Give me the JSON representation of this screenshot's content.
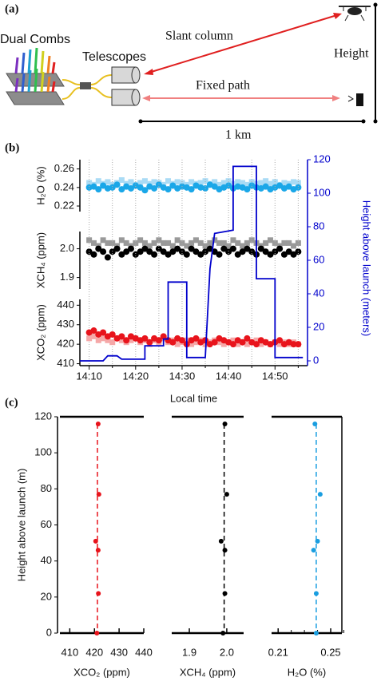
{
  "panel_labels": [
    "(a)",
    "(b)",
    "(c)"
  ],
  "diagram": {
    "source": "Dual Combs",
    "telescopes": "Telescopes",
    "slant": "Slant column",
    "fixed": "Fixed path",
    "height": "Height",
    "distance": "1 km"
  },
  "chart_data": [
    {
      "type": "scatter",
      "ylabel": "H₂O (%)",
      "x": [
        "14:10",
        "14:11",
        "14:12",
        "14:13",
        "14:14",
        "14:15",
        "14:16",
        "14:17",
        "14:18",
        "14:19",
        "14:20",
        "14:21",
        "14:22",
        "14:23",
        "14:24",
        "14:25",
        "14:26",
        "14:27",
        "14:28",
        "14:29",
        "14:30",
        "14:31",
        "14:32",
        "14:33",
        "14:34",
        "14:35",
        "14:36",
        "14:37",
        "14:38",
        "14:39",
        "14:40",
        "14:41",
        "14:42",
        "14:43",
        "14:44",
        "14:45",
        "14:46",
        "14:47",
        "14:48",
        "14:49",
        "14:50",
        "14:51",
        "14:52",
        "14:53",
        "14:54",
        "14:55"
      ],
      "xlim": [
        "14:08",
        "14:57"
      ],
      "ylim": [
        0.214,
        0.27
      ],
      "yticks": [
        0.22,
        0.24,
        0.26
      ],
      "series": [
        {
          "color": "#a9dbf5",
          "marker": "square",
          "values": [
            0.245,
            0.243,
            0.247,
            0.244,
            0.246,
            0.243,
            0.245,
            0.248,
            0.244,
            0.246,
            0.243,
            0.245,
            0.247,
            0.244,
            0.246,
            0.245,
            0.243,
            0.247,
            0.244,
            0.246,
            0.245,
            0.243,
            0.246,
            0.244,
            0.245,
            0.247,
            0.244,
            0.246,
            0.243,
            0.245,
            0.247,
            0.244,
            0.246,
            0.245,
            0.243,
            0.246,
            0.244,
            0.245,
            0.247,
            0.244,
            0.246,
            0.243,
            0.245,
            0.244,
            0.246,
            0.245
          ]
        },
        {
          "color": "#1aa7e8",
          "marker": "circle",
          "values": [
            0.24,
            0.241,
            0.238,
            0.242,
            0.239,
            0.24,
            0.243,
            0.238,
            0.241,
            0.239,
            0.242,
            0.24,
            0.237,
            0.241,
            0.239,
            0.243,
            0.24,
            0.238,
            0.242,
            0.239,
            0.241,
            0.24,
            0.238,
            0.242,
            0.24,
            0.239,
            0.243,
            0.241,
            0.238,
            0.24,
            0.242,
            0.239,
            0.241,
            0.24,
            0.238,
            0.242,
            0.24,
            0.239,
            0.241,
            0.238,
            0.24,
            0.242,
            0.239,
            0.241,
            0.238,
            0.24
          ]
        }
      ]
    },
    {
      "type": "scatter",
      "ylabel": "XCH₄ (ppm)",
      "x": [
        "14:10",
        "14:11",
        "14:12",
        "14:13",
        "14:14",
        "14:15",
        "14:16",
        "14:17",
        "14:18",
        "14:19",
        "14:20",
        "14:21",
        "14:22",
        "14:23",
        "14:24",
        "14:25",
        "14:26",
        "14:27",
        "14:28",
        "14:29",
        "14:30",
        "14:31",
        "14:32",
        "14:33",
        "14:34",
        "14:35",
        "14:36",
        "14:37",
        "14:38",
        "14:39",
        "14:40",
        "14:41",
        "14:42",
        "14:43",
        "14:44",
        "14:45",
        "14:46",
        "14:47",
        "14:48",
        "14:49",
        "14:50",
        "14:51",
        "14:52",
        "14:53",
        "14:54",
        "14:55"
      ],
      "xlim": [
        "14:08",
        "14:57"
      ],
      "ylim": [
        1.86,
        2.06
      ],
      "yticks": [
        1.9,
        {
          "value": 2,
          "label": "2.0"
        }
      ],
      "series": [
        {
          "color": "#999999",
          "marker": "square",
          "values": [
            2.03,
            2.02,
            2.01,
            2.03,
            2.02,
            2.02,
            2.01,
            2.03,
            2.02,
            2.01,
            2.02,
            2.03,
            2.02,
            2.01,
            2.02,
            2.03,
            2.02,
            2.02,
            2.01,
            2.03,
            2.02,
            2.01,
            2.02,
            2.03,
            2.02,
            2.01,
            2.02,
            2.03,
            2.02,
            2.02,
            2.01,
            2.03,
            2.02,
            2.01,
            2.02,
            2.03,
            2.02,
            2.01,
            2.02,
            2.03,
            2.02,
            2.01,
            2.02,
            2.02,
            2.01,
            2.02
          ]
        },
        {
          "color": "#000000",
          "marker": "circle",
          "values": [
            1.99,
            1.98,
            2.0,
            1.99,
            1.97,
            1.99,
            2.0,
            1.98,
            1.99,
            2.0,
            1.98,
            1.99,
            2.0,
            1.99,
            1.98,
            2.0,
            1.99,
            1.98,
            1.99,
            2.0,
            1.99,
            1.98,
            2.0,
            1.99,
            1.98,
            1.99,
            2.0,
            1.99,
            1.98,
            2.0,
            1.99,
            2.0,
            1.98,
            1.99,
            2.0,
            1.99,
            1.98,
            2.0,
            1.99,
            1.98,
            1.99,
            2.0,
            1.98,
            1.99,
            1.98,
            1.99
          ]
        }
      ]
    },
    {
      "type": "scatter",
      "ylabel": "XCO₂ (ppm)",
      "xlabel": "Local time",
      "x": [
        "14:10",
        "14:11",
        "14:12",
        "14:13",
        "14:14",
        "14:15",
        "14:16",
        "14:17",
        "14:18",
        "14:19",
        "14:20",
        "14:21",
        "14:22",
        "14:23",
        "14:24",
        "14:25",
        "14:26",
        "14:27",
        "14:28",
        "14:29",
        "14:30",
        "14:31",
        "14:32",
        "14:33",
        "14:34",
        "14:35",
        "14:36",
        "14:37",
        "14:38",
        "14:39",
        "14:40",
        "14:41",
        "14:42",
        "14:43",
        "14:44",
        "14:45",
        "14:46",
        "14:47",
        "14:48",
        "14:49",
        "14:50",
        "14:51",
        "14:52",
        "14:53",
        "14:54",
        "14:55"
      ],
      "xlim": [
        "14:08",
        "14:57"
      ],
      "xticks": [
        "14:10",
        "14:20",
        "14:30",
        "14:40",
        "14:50"
      ],
      "xminorticks": [
        "14:15",
        "14:25",
        "14:35",
        "14:45",
        "14:55"
      ],
      "grid": true,
      "ylim": [
        409,
        443
      ],
      "yticks": [
        410,
        420,
        430,
        440
      ],
      "series": [
        {
          "color": "#f5a8a8",
          "marker": "square",
          "values": [
            423,
            424,
            422,
            423,
            422,
            421,
            423,
            422,
            421,
            422,
            423,
            421,
            422,
            420,
            422,
            421,
            423,
            421,
            422,
            420,
            421,
            422,
            420,
            421,
            422,
            420,
            421,
            422,
            421,
            420,
            421,
            422,
            420,
            421,
            420,
            421,
            422,
            420,
            421,
            420,
            421,
            420,
            421,
            420,
            421,
            420
          ]
        },
        {
          "color": "#e8141c",
          "marker": "circle",
          "values": [
            426,
            427,
            425,
            426,
            424,
            425,
            423,
            424,
            422,
            424,
            423,
            422,
            423,
            421,
            423,
            422,
            424,
            422,
            421,
            423,
            422,
            420,
            422,
            423,
            421,
            422,
            420,
            421,
            423,
            422,
            421,
            420,
            422,
            421,
            423,
            421,
            420,
            422,
            421,
            420,
            421,
            422,
            420,
            421,
            420,
            420
          ]
        }
      ]
    },
    {
      "type": "line",
      "ylabel": "Height above launch (meters)",
      "x": [
        "14:08",
        "14:13",
        "14:14",
        "14:16",
        "14:17",
        "14:22",
        "14:22",
        "14:26",
        "14:26",
        "14:27",
        "14:27",
        "14:31",
        "14:31",
        "14:35",
        "14:36",
        "14:37",
        "14:41",
        "14:41",
        "14:46",
        "14:46",
        "14:50",
        "14:50",
        "14:56"
      ],
      "xlim": [
        "14:08",
        "14:57"
      ],
      "y2lim": [
        0,
        120
      ],
      "y2ticks": [
        0,
        20,
        40,
        60,
        80,
        100,
        120
      ],
      "series": [
        {
          "axis": "y2",
          "color": "#0000cc",
          "values": [
            0,
            0,
            3,
            3,
            1,
            1,
            9,
            9,
            13,
            13,
            47,
            47,
            2,
            2,
            55,
            76,
            78,
            116,
            116,
            49,
            49,
            2,
            2
          ]
        }
      ]
    },
    {
      "type": "scatter",
      "xlabel": "XCO₂ (ppm)",
      "ylabel": "Height above launch (m)",
      "xlim": [
        406,
        440
      ],
      "xticks": [
        410,
        420,
        430,
        440
      ],
      "ylim": [
        0,
        120
      ],
      "yticks": [
        0,
        20,
        40,
        60,
        80,
        100,
        120
      ],
      "color": "#e8141c",
      "mean": 421.2,
      "y": [
        116,
        77,
        51,
        46,
        22,
        0
      ],
      "x": [
        421.5,
        421.8,
        420.5,
        421.5,
        421.6,
        421.0
      ],
      "xerr": [
        0.5,
        0.5,
        0.5,
        0.5,
        0.5,
        0.5
      ]
    },
    {
      "type": "scatter",
      "xlabel": "XCH₄ (ppm)",
      "xlim": [
        1.853,
        2.045
      ],
      "xticks": [
        1.9,
        {
          "value": 2,
          "label": "2.0"
        }
      ],
      "ylim": [
        0,
        120
      ],
      "color": "#000000",
      "mean": 1.993,
      "y": [
        116,
        77,
        51,
        46,
        22,
        0
      ],
      "x": [
        1.995,
        2.0,
        1.985,
        1.995,
        1.995,
        1.99
      ],
      "xerr": [
        0.003,
        0.003,
        0.003,
        0.003,
        0.003,
        0.003
      ]
    },
    {
      "type": "scatter",
      "xlabel": "H₂O (%)",
      "xlim": [
        0.205,
        0.2585
      ],
      "xticks": [
        0.21,
        0.25
      ],
      "xminorticks": [
        0.22,
        0.23,
        0.24,
        0.26
      ],
      "ylim": [
        0,
        120
      ],
      "color": "#1a9ee0",
      "mean": 0.239,
      "y": [
        116,
        77,
        51,
        46,
        22,
        0
      ],
      "x": [
        0.238,
        0.242,
        0.24,
        0.237,
        0.239,
        0.239
      ],
      "xerr": [
        0.0006,
        0.0006,
        0.0006,
        0.0006,
        0.0006,
        0.0006
      ]
    }
  ]
}
